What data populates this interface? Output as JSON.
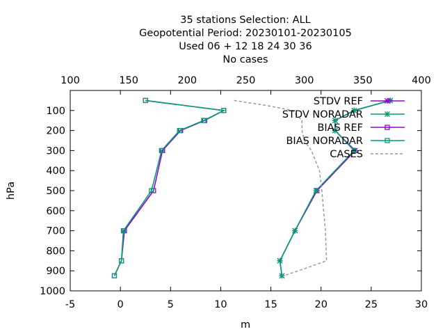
{
  "title_lines": [
    "35 stations Selection: ALL",
    "Geopotential  Period: 20230101-20230105",
    "Used  06 + 12 18 24 30 36",
    "No cases"
  ],
  "chart_data": {
    "type": "line",
    "xlabel": "m",
    "ylabel": "hPa",
    "x_bottom_range": [
      -5,
      30
    ],
    "x_bottom_ticks": [
      "-5",
      "0",
      "5",
      "10",
      "15",
      "20",
      "25",
      "30"
    ],
    "x_top_range": [
      100,
      400
    ],
    "x_top_ticks": [
      "100",
      "150",
      "200",
      "250",
      "300",
      "350",
      "400"
    ],
    "y_range": [
      1000,
      0
    ],
    "y_scale": "linear, inverted (pressure decreasing upward)",
    "y_ticks": [
      "100",
      "200",
      "300",
      "400",
      "500",
      "600",
      "700",
      "800",
      "900",
      "1000"
    ],
    "grid": false,
    "legend_position": "top-right",
    "series": [
      {
        "name": "STDV REF",
        "axis": "bottom",
        "color": "#9400d3",
        "marker": "star",
        "points": [
          [
            26.9,
            50
          ],
          [
            23.3,
            100
          ],
          [
            21.4,
            150
          ],
          [
            21.4,
            200
          ],
          [
            23.4,
            300
          ],
          [
            19.6,
            500
          ],
          [
            17.4,
            700
          ],
          [
            15.9,
            850
          ],
          [
            16.1,
            925
          ]
        ]
      },
      {
        "name": "STDV NORADAR",
        "axis": "bottom",
        "color": "#009e73",
        "marker": "star",
        "points": [
          [
            26.9,
            50
          ],
          [
            23.3,
            100
          ],
          [
            21.4,
            150
          ],
          [
            21.4,
            200
          ],
          [
            23.3,
            300
          ],
          [
            19.5,
            500
          ],
          [
            17.4,
            700
          ],
          [
            15.9,
            850
          ],
          [
            16.1,
            925
          ]
        ]
      },
      {
        "name": "BIAS REF",
        "axis": "bottom",
        "color": "#9400d3",
        "marker": "square",
        "points": [
          [
            2.5,
            50
          ],
          [
            10.3,
            100
          ],
          [
            8.4,
            150
          ],
          [
            6.0,
            200
          ],
          [
            4.2,
            300
          ],
          [
            3.3,
            500
          ],
          [
            0.4,
            700
          ],
          [
            0.1,
            850
          ],
          [
            -0.6,
            925
          ]
        ]
      },
      {
        "name": "BIAS NORADAR",
        "axis": "bottom",
        "color": "#009e73",
        "marker": "square",
        "points": [
          [
            2.5,
            50
          ],
          [
            10.3,
            100
          ],
          [
            8.3,
            150
          ],
          [
            5.9,
            200
          ],
          [
            4.1,
            300
          ],
          [
            3.1,
            500
          ],
          [
            0.3,
            700
          ],
          [
            0.1,
            850
          ],
          [
            -0.6,
            925
          ]
        ]
      },
      {
        "name": "CASES",
        "axis": "top",
        "color": "#999999",
        "dashed": true,
        "points": [
          [
            240,
            50
          ],
          [
            268,
            75
          ],
          [
            290,
            100
          ],
          [
            298,
            150
          ],
          [
            298,
            200
          ],
          [
            300,
            250
          ],
          [
            306,
            300
          ],
          [
            313,
            400
          ],
          [
            315,
            500
          ],
          [
            318,
            700
          ],
          [
            319,
            850
          ],
          [
            300,
            890
          ],
          [
            282,
            925
          ]
        ]
      }
    ]
  }
}
